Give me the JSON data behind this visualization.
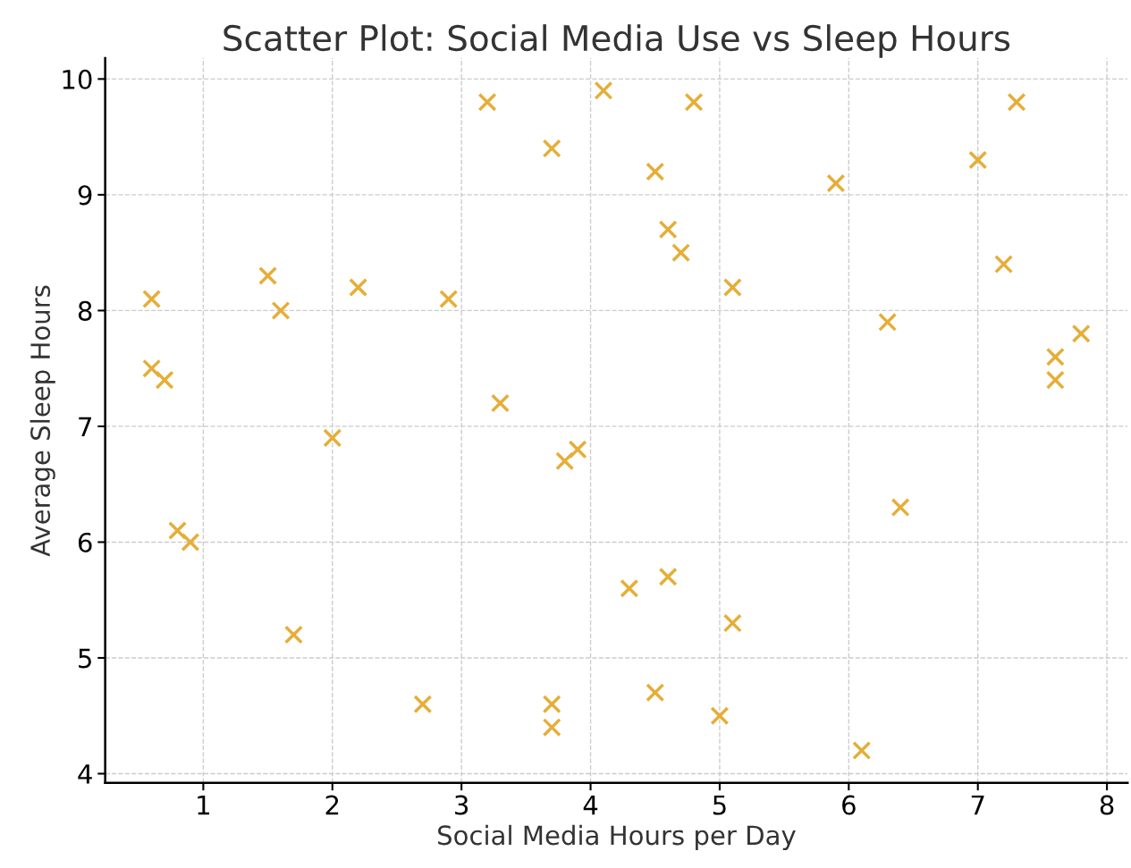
{
  "chart_data": {
    "type": "scatter",
    "title": "Scatter Plot: Social Media Use vs Sleep Hours",
    "xlabel": "Social Media Hours per Day",
    "ylabel": "Average Sleep Hours",
    "x": [
      0.6,
      0.6,
      0.7,
      0.8,
      0.9,
      1.5,
      1.6,
      1.7,
      2.0,
      2.2,
      2.7,
      2.9,
      3.2,
      3.3,
      3.7,
      3.7,
      3.7,
      3.8,
      3.9,
      4.1,
      4.3,
      4.5,
      4.5,
      4.6,
      4.6,
      4.7,
      4.8,
      5.0,
      5.1,
      5.1,
      5.9,
      6.1,
      6.3,
      6.4,
      7.0,
      7.2,
      7.3,
      7.6,
      7.6,
      7.8
    ],
    "values": [
      8.1,
      7.5,
      7.4,
      6.1,
      6.0,
      8.3,
      8.0,
      5.2,
      6.9,
      8.2,
      4.6,
      8.1,
      9.8,
      7.2,
      9.4,
      4.6,
      4.4,
      6.7,
      6.8,
      9.9,
      5.6,
      9.2,
      4.7,
      8.7,
      5.7,
      8.5,
      9.8,
      4.5,
      8.2,
      5.3,
      9.1,
      4.2,
      7.9,
      6.3,
      9.3,
      8.4,
      9.8,
      7.6,
      7.4,
      7.8
    ],
    "color": "#e5ae38",
    "marker": "cross",
    "grid": true,
    "xlim": [
      0.24,
      8.16
    ],
    "ylim": [
      3.92,
      10.18
    ],
    "xticks": [
      1,
      2,
      3,
      4,
      5,
      6,
      7,
      8
    ],
    "yticks": [
      4,
      5,
      6,
      7,
      8,
      9,
      10
    ]
  }
}
